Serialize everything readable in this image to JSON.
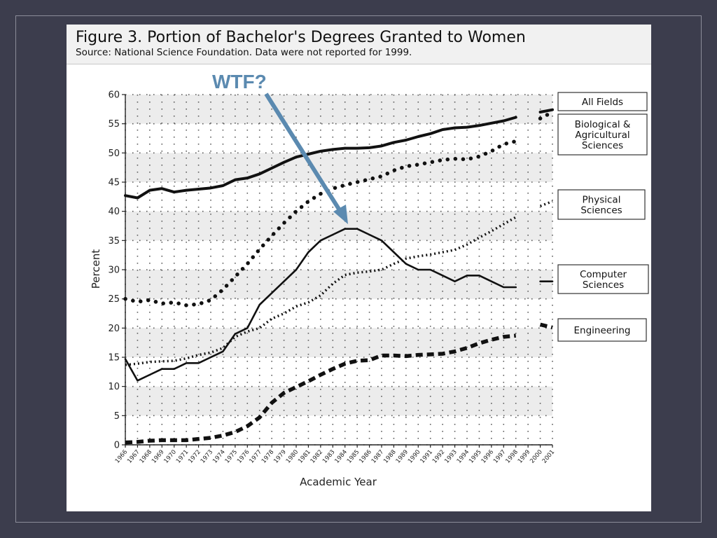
{
  "figure": {
    "title": "Figure 3. Portion of Bachelor's Degrees Granted to Women",
    "source": "Source: National Science Foundation. Data were not reported for 1999."
  },
  "annotation": {
    "text": "WTF?",
    "color": "#5b8ab0",
    "points_to": {
      "x": 1985,
      "y": 37
    }
  },
  "chart_data": {
    "type": "line",
    "title": "",
    "xlabel": "Academic Year",
    "ylabel": "Percent",
    "ylim": [
      0,
      60
    ],
    "yticks": [
      0,
      5,
      10,
      15,
      20,
      25,
      30,
      35,
      40,
      45,
      50,
      55,
      60
    ],
    "xticks": [
      "1966",
      "1967",
      "1968",
      "1969",
      "1970",
      "1971",
      "1972",
      "1973",
      "1974",
      "1975",
      "1976",
      "1977",
      "1978",
      "1979",
      "1980",
      "1981",
      "1982",
      "1983",
      "1984",
      "1985",
      "1986",
      "1987",
      "1988",
      "1989",
      "1990",
      "1991",
      "1992",
      "1993",
      "1994",
      "1995",
      "1996",
      "1997",
      "1998",
      "1999",
      "2000",
      "2001"
    ],
    "grid": true,
    "legend": "right",
    "series": [
      {
        "name": "All Fields",
        "style": "solid-thick",
        "x": [
          1966,
          1967,
          1968,
          1969,
          1970,
          1971,
          1972,
          1973,
          1974,
          1975,
          1976,
          1977,
          1978,
          1979,
          1980,
          1981,
          1982,
          1983,
          1984,
          1985,
          1986,
          1987,
          1988,
          1989,
          1990,
          1991,
          1992,
          1993,
          1994,
          1995,
          1996,
          1997,
          1998,
          2000,
          2001
        ],
        "y": [
          42.7,
          42.3,
          43.6,
          43.9,
          43.3,
          43.6,
          43.8,
          44.0,
          44.4,
          45.4,
          45.7,
          46.4,
          47.4,
          48.4,
          49.3,
          49.8,
          50.3,
          50.6,
          50.8,
          50.8,
          50.9,
          51.2,
          51.8,
          52.2,
          52.8,
          53.3,
          54.0,
          54.3,
          54.4,
          54.7,
          55.1,
          55.5,
          56.1,
          57.0,
          57.4
        ]
      },
      {
        "name": "Biological & Agricultural Sciences",
        "style": "dotted-thick",
        "x": [
          1966,
          1967,
          1968,
          1969,
          1970,
          1971,
          1972,
          1973,
          1974,
          1975,
          1976,
          1977,
          1978,
          1979,
          1980,
          1981,
          1982,
          1983,
          1984,
          1985,
          1986,
          1987,
          1988,
          1989,
          1990,
          1991,
          1992,
          1993,
          1994,
          1995,
          1996,
          1997,
          1998,
          2000,
          2001
        ],
        "y": [
          25.0,
          24.5,
          24.8,
          24.2,
          24.4,
          23.9,
          24.1,
          24.8,
          26.6,
          28.8,
          31.0,
          33.5,
          35.8,
          38.0,
          40.0,
          41.7,
          43.0,
          43.9,
          44.5,
          45.0,
          45.5,
          46.0,
          47.0,
          47.7,
          48.0,
          48.4,
          48.8,
          49.0,
          48.9,
          49.4,
          50.3,
          51.5,
          52.0,
          55.9,
          57.0
        ]
      },
      {
        "name": "Physical Sciences",
        "style": "dotted",
        "x": [
          1966,
          1967,
          1968,
          1969,
          1970,
          1971,
          1972,
          1973,
          1974,
          1975,
          1976,
          1977,
          1978,
          1979,
          1980,
          1981,
          1982,
          1983,
          1984,
          1985,
          1986,
          1987,
          1988,
          1989,
          1990,
          1991,
          1992,
          1993,
          1994,
          1995,
          1996,
          1997,
          1998,
          2000,
          2001
        ],
        "y": [
          13.7,
          13.9,
          14.2,
          14.3,
          14.4,
          14.8,
          15.4,
          15.8,
          16.6,
          18.5,
          19.4,
          20.0,
          21.6,
          22.5,
          23.7,
          24.4,
          25.6,
          27.6,
          29.1,
          29.5,
          29.7,
          30.0,
          31.0,
          31.9,
          32.3,
          32.6,
          33.0,
          33.4,
          34.3,
          35.5,
          36.6,
          37.8,
          39.0,
          40.9,
          41.7
        ]
      },
      {
        "name": "Computer Sciences",
        "style": "solid",
        "x": [
          1966,
          1967,
          1968,
          1969,
          1970,
          1971,
          1972,
          1973,
          1974,
          1975,
          1976,
          1977,
          1978,
          1979,
          1980,
          1981,
          1982,
          1983,
          1984,
          1985,
          1986,
          1987,
          1988,
          1989,
          1990,
          1991,
          1992,
          1993,
          1994,
          1995,
          1996,
          1997,
          1998,
          2000,
          2001
        ],
        "y": [
          14.7,
          11.0,
          12.0,
          13.0,
          13.0,
          14.0,
          14.0,
          15.0,
          16.0,
          19.0,
          20.0,
          24.0,
          26.0,
          28.0,
          30.0,
          33.0,
          35.0,
          36.0,
          37.0,
          37.0,
          36.0,
          35.0,
          33.0,
          31.0,
          30.0,
          30.0,
          29.0,
          28.0,
          29.0,
          29.0,
          28.0,
          27.0,
          27.0,
          28.0,
          28.0
        ]
      },
      {
        "name": "Engineering",
        "style": "dashed-thick",
        "x": [
          1966,
          1967,
          1968,
          1969,
          1970,
          1971,
          1972,
          1973,
          1974,
          1975,
          1976,
          1977,
          1978,
          1979,
          1980,
          1981,
          1982,
          1983,
          1984,
          1985,
          1986,
          1987,
          1988,
          1989,
          1990,
          1991,
          1992,
          1993,
          1994,
          1995,
          1996,
          1997,
          1998,
          2000,
          2001
        ],
        "y": [
          0.4,
          0.5,
          0.7,
          0.8,
          0.8,
          0.8,
          1.0,
          1.2,
          1.6,
          2.2,
          3.2,
          4.7,
          7.2,
          8.9,
          9.9,
          10.9,
          12.0,
          13.0,
          13.9,
          14.4,
          14.5,
          15.3,
          15.3,
          15.2,
          15.4,
          15.5,
          15.6,
          16.0,
          16.6,
          17.4,
          18.0,
          18.5,
          18.7,
          20.6,
          20.1
        ]
      }
    ]
  }
}
